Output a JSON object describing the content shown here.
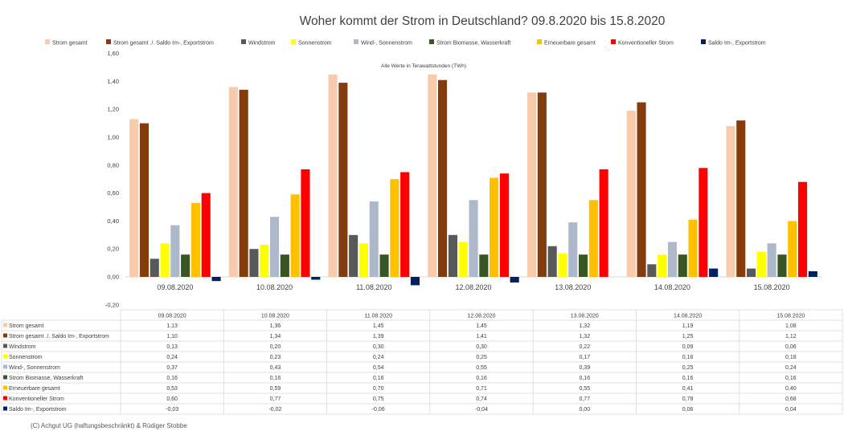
{
  "chart_data": {
    "type": "bar",
    "title": "Woher kommt der Strom in Deutschland? 09.8.2020 bis 15.8.2020",
    "subtitle": "Alle Werte in Terawattstunden (TWh)",
    "xlabel": "",
    "ylabel": "",
    "ylim": [
      -0.2,
      1.6
    ],
    "yticks": [
      "1,60",
      "1,40",
      "1,20",
      "1,00",
      "0,80",
      "0,60",
      "0,40",
      "0,20",
      "0,00",
      "-0,20"
    ],
    "grid": false,
    "legend_position": "top",
    "categories": [
      "09.08.2020",
      "10.08.2020",
      "11.08.2020",
      "12.08.2020",
      "13.08.2020",
      "14.08.2020",
      "15.08.2020"
    ],
    "series": [
      {
        "name": "Strom gesamt",
        "color": "#F8CBAD",
        "values": [
          1.13,
          1.36,
          1.45,
          1.45,
          1.32,
          1.19,
          1.08
        ],
        "labels": [
          "1,13",
          "1,36",
          "1,45",
          "1,45",
          "1,32",
          "1,19",
          "1,08"
        ]
      },
      {
        "name": "Strom gesamt ./. Saldo Im-, Exportstrom",
        "color": "#843C0C",
        "values": [
          1.1,
          1.34,
          1.39,
          1.41,
          1.32,
          1.25,
          1.12
        ],
        "labels": [
          "1,10",
          "1,34",
          "1,39",
          "1,41",
          "1,32",
          "1,25",
          "1,12"
        ]
      },
      {
        "name": "Windstrom",
        "color": "#595959",
        "values": [
          0.13,
          0.2,
          0.3,
          0.3,
          0.22,
          0.09,
          0.06
        ],
        "labels": [
          "0,13",
          "0,20",
          "0,30",
          "0,30",
          "0,22",
          "0,09",
          "0,06"
        ]
      },
      {
        "name": "Sonnenstrom",
        "color": "#FFFF00",
        "values": [
          0.24,
          0.23,
          0.24,
          0.25,
          0.17,
          0.16,
          0.18
        ],
        "labels": [
          "0,24",
          "0,23",
          "0,24",
          "0,25",
          "0,17",
          "0,16",
          "0,18"
        ]
      },
      {
        "name": "Wind-, Sonnenstrom",
        "color": "#ADB9CA",
        "values": [
          0.37,
          0.43,
          0.54,
          0.55,
          0.39,
          0.25,
          0.24
        ],
        "labels": [
          "0,37",
          "0,43",
          "0,54",
          "0,55",
          "0,39",
          "0,25",
          "0,24"
        ]
      },
      {
        "name": "Strom Biomasse, Wasserkraft",
        "color": "#375623",
        "values": [
          0.16,
          0.16,
          0.16,
          0.16,
          0.16,
          0.16,
          0.16
        ],
        "labels": [
          "0,16",
          "0,16",
          "0,16",
          "0,16",
          "0,16",
          "0,16",
          "0,16"
        ]
      },
      {
        "name": "Erneuerbare gesamt",
        "color": "#FFC000",
        "values": [
          0.53,
          0.59,
          0.7,
          0.71,
          0.55,
          0.41,
          0.4
        ],
        "labels": [
          "0,53",
          "0,59",
          "0,70",
          "0,71",
          "0,55",
          "0,41",
          "0,40"
        ]
      },
      {
        "name": "Konventioneller Strom",
        "color": "#FF0000",
        "values": [
          0.6,
          0.77,
          0.75,
          0.74,
          0.77,
          0.78,
          0.68
        ],
        "labels": [
          "0,60",
          "0,77",
          "0,75",
          "0,74",
          "0,77",
          "0,78",
          "0,68"
        ]
      },
      {
        "name": "Saldo Im-, Exportstrom",
        "color": "#002060",
        "values": [
          -0.03,
          -0.02,
          -0.06,
          -0.04,
          0.0,
          0.06,
          0.04
        ],
        "labels": [
          "-0,03",
          "-0,02",
          "-0,06",
          "-0,04",
          "0,00",
          "0,06",
          "0,04"
        ]
      }
    ]
  },
  "footer": "(C) Achgut UG (haftungsbeschränkt) & Rüdiger Stobbe"
}
